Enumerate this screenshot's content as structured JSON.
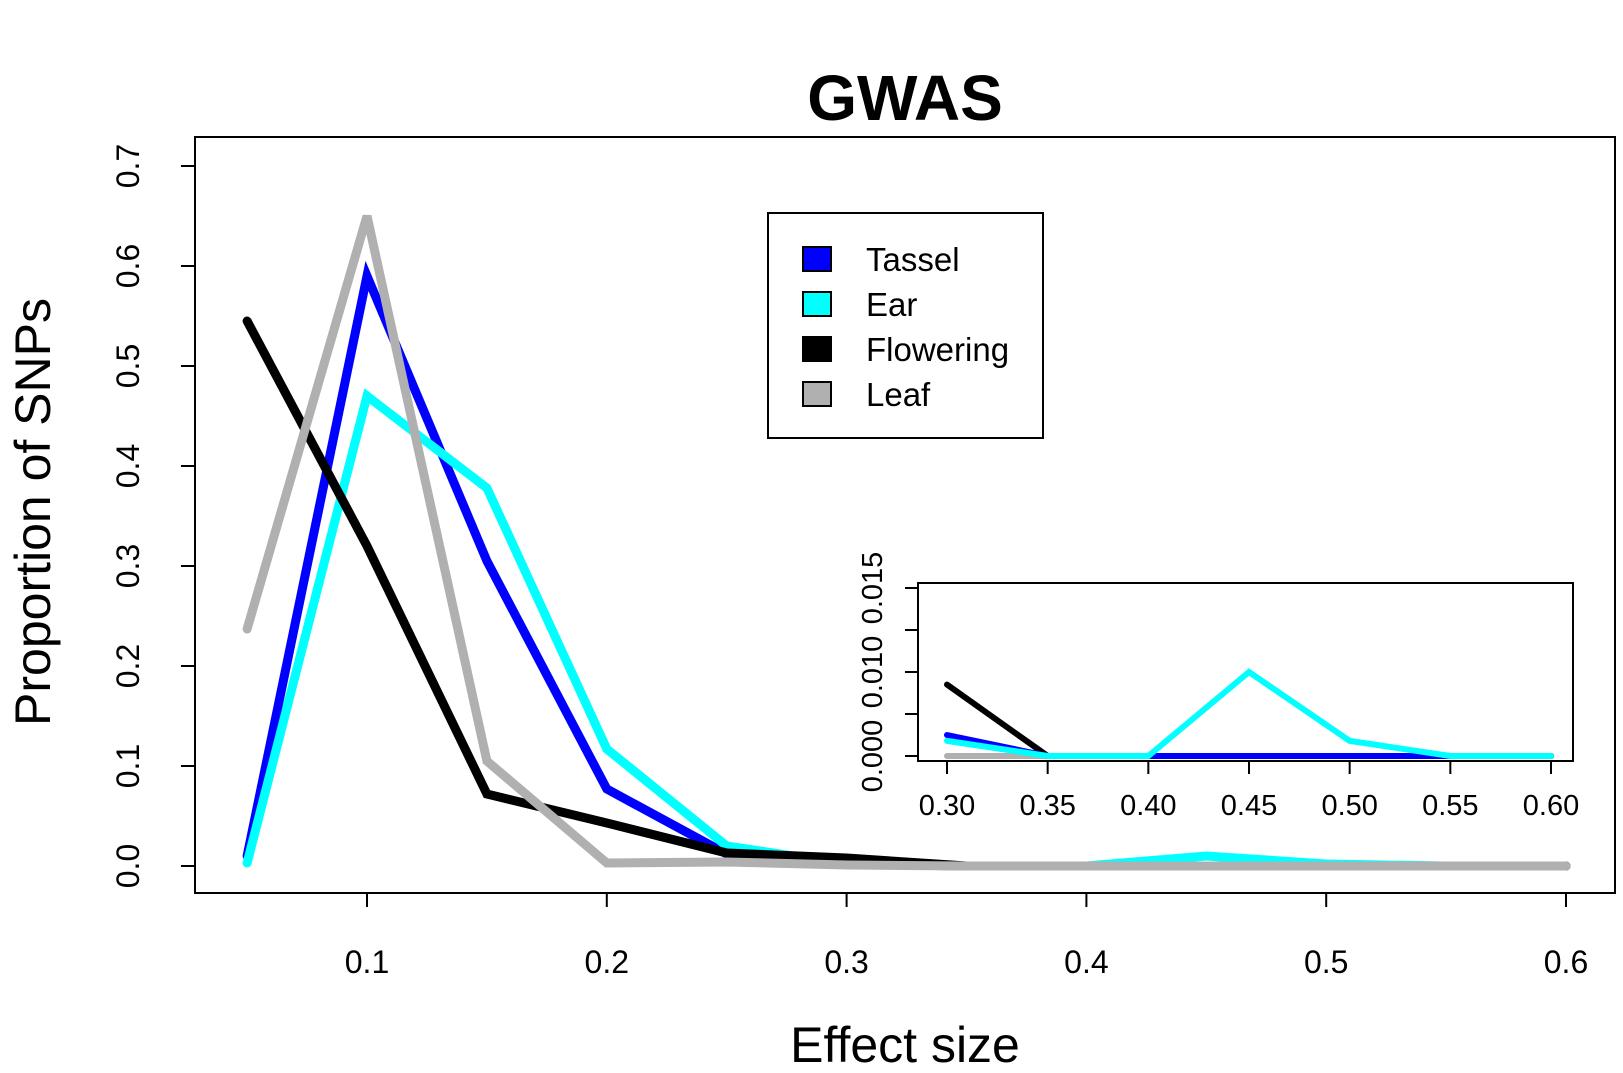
{
  "chart_data": [
    {
      "type": "line",
      "title": "GWAS",
      "xlabel": "Effect size",
      "ylabel": "Proportion of SNPs",
      "xlim": [
        0.05,
        0.6
      ],
      "ylim": [
        0,
        0.7
      ],
      "xticks": [
        "0.1",
        "0.2",
        "0.3",
        "0.4",
        "0.5",
        "0.6"
      ],
      "yticks": [
        "0.0",
        "0.1",
        "0.2",
        "0.3",
        "0.4",
        "0.5",
        "0.6",
        "0.7"
      ],
      "grid": false,
      "legend_position": "top-center",
      "x": [
        0.05,
        0.1,
        0.15,
        0.2,
        0.25,
        0.3,
        0.35,
        0.4,
        0.45,
        0.5,
        0.55,
        0.6
      ],
      "series": [
        {
          "name": "Tassel",
          "color": "#0000ff",
          "values": [
            0.01,
            0.59,
            0.305,
            0.077,
            0.012,
            0.002,
            0.0,
            0.0,
            0.0,
            0.0,
            0.0,
            0.0
          ]
        },
        {
          "name": "Ear",
          "color": "#00ffff",
          "values": [
            0.003,
            0.47,
            0.378,
            0.117,
            0.02,
            0.002,
            0.0,
            0.0,
            0.01,
            0.002,
            0.0,
            0.0
          ]
        },
        {
          "name": "Flowering",
          "color": "#000000",
          "values": [
            0.545,
            0.32,
            0.072,
            0.043,
            0.013,
            0.008,
            0.0,
            0.0,
            0.0,
            0.0,
            0.0,
            0.0
          ]
        },
        {
          "name": "Leaf",
          "color": "#b0b0b0",
          "values": [
            0.237,
            0.65,
            0.105,
            0.003,
            0.004,
            0.001,
            0.0,
            0.0,
            0.0,
            0.0,
            0.0,
            0.0
          ]
        }
      ]
    },
    {
      "type": "line",
      "title": "",
      "xlabel": "",
      "ylabel": "",
      "xlim": [
        0.3,
        0.6
      ],
      "ylim": [
        0,
        0.02
      ],
      "xticks": [
        "0.30",
        "0.35",
        "0.40",
        "0.45",
        "0.50",
        "0.55",
        "0.60"
      ],
      "yticks": [
        "0.000",
        "",
        "0.010",
        "",
        "0.015"
      ],
      "grid": false,
      "legend_position": "none",
      "x": [
        0.3,
        0.35,
        0.4,
        0.45,
        0.5,
        0.55,
        0.6
      ],
      "series": [
        {
          "name": "Leaf",
          "color": "#b0b0b0",
          "values": [
            0.0,
            0.0,
            0.0,
            0.0,
            0.0,
            0.0,
            0.0
          ]
        },
        {
          "name": "Flowering",
          "color": "#000000",
          "values": [
            0.0085,
            0.0,
            0.0,
            0.0,
            0.0,
            0.0,
            0.0
          ]
        },
        {
          "name": "Tassel",
          "color": "#0000ff",
          "values": [
            0.0025,
            0.0,
            0.0,
            0.0,
            0.0,
            0.0,
            0.0
          ]
        },
        {
          "name": "Ear",
          "color": "#00ffff",
          "values": [
            0.0018,
            0.0,
            0.0,
            0.01,
            0.0018,
            0.0,
            0.0
          ]
        }
      ]
    }
  ],
  "legend": {
    "items": [
      {
        "label": "Tassel",
        "color": "#0000ff"
      },
      {
        "label": "Ear",
        "color": "#00ffff"
      },
      {
        "label": "Flowering",
        "color": "#000000"
      },
      {
        "label": "Leaf",
        "color": "#b0b0b0"
      }
    ]
  }
}
